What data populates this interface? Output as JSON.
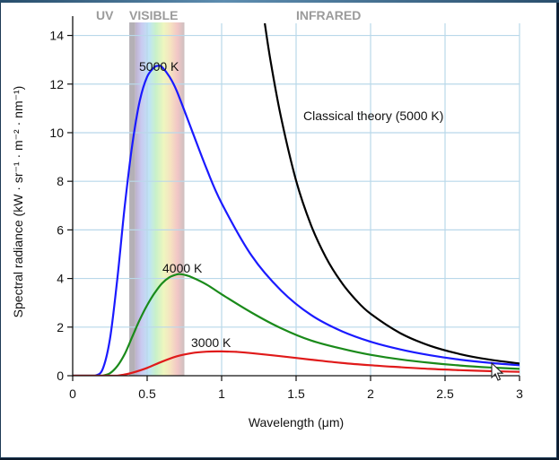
{
  "chart_data": {
    "type": "line",
    "title": "",
    "xlabel": "Wavelength (μm)",
    "ylabel": "Spectral radiance (kW · sr⁻¹ · m⁻² · nm⁻¹)",
    "xlim": [
      0,
      3
    ],
    "ylim": [
      0,
      14.5
    ],
    "xticks": [
      0,
      0.5,
      1,
      1.5,
      2,
      2.5,
      3
    ],
    "xtick_labels": [
      "0",
      "0.5",
      "1",
      "1.5",
      "2",
      "2.5",
      "3"
    ],
    "yticks": [
      0,
      2,
      4,
      6,
      8,
      10,
      12,
      14
    ],
    "ytick_labels": [
      "0",
      "2",
      "4",
      "6",
      "8",
      "10",
      "12",
      "14"
    ],
    "grid": true,
    "bands": [
      {
        "name": "UV",
        "from": 0.1,
        "to": 0.38
      },
      {
        "name": "VISIBLE",
        "from": 0.38,
        "to": 0.75
      },
      {
        "name": "INFRARED",
        "from": 0.75,
        "to": 3
      }
    ],
    "series": [
      {
        "name": "5000 K",
        "label": "5000 K",
        "color": "#1a1aff",
        "x": [
          0.15,
          0.2,
          0.25,
          0.3,
          0.35,
          0.4,
          0.45,
          0.5,
          0.55,
          0.58,
          0.6,
          0.65,
          0.7,
          0.8,
          0.9,
          1.0,
          1.2,
          1.4,
          1.6,
          1.8,
          2.0,
          2.2,
          2.4,
          2.6,
          2.8,
          3.0
        ],
        "y": [
          0.0,
          0.25,
          1.5,
          4.0,
          7.0,
          9.5,
          11.3,
          12.3,
          12.7,
          12.75,
          12.7,
          12.3,
          11.7,
          10.1,
          8.5,
          7.1,
          4.95,
          3.5,
          2.5,
          1.85,
          1.4,
          1.08,
          0.84,
          0.66,
          0.53,
          0.43
        ]
      },
      {
        "name": "4000 K",
        "label": "4000 K",
        "color": "#1a8a1a",
        "x": [
          0.2,
          0.25,
          0.3,
          0.35,
          0.4,
          0.45,
          0.5,
          0.55,
          0.6,
          0.65,
          0.7,
          0.72,
          0.75,
          0.8,
          0.9,
          1.0,
          1.2,
          1.4,
          1.6,
          1.8,
          2.0,
          2.2,
          2.4,
          2.6,
          2.8,
          3.0
        ],
        "y": [
          0.0,
          0.1,
          0.4,
          0.9,
          1.6,
          2.3,
          2.9,
          3.4,
          3.8,
          4.05,
          4.17,
          4.18,
          4.15,
          4.05,
          3.75,
          3.35,
          2.6,
          1.95,
          1.45,
          1.12,
          0.86,
          0.67,
          0.53,
          0.42,
          0.34,
          0.28
        ]
      },
      {
        "name": "3000 K",
        "label": "3000 K",
        "color": "#e01a1a",
        "x": [
          0.3,
          0.35,
          0.4,
          0.5,
          0.6,
          0.7,
          0.8,
          0.9,
          0.97,
          1.0,
          1.1,
          1.2,
          1.4,
          1.6,
          1.8,
          2.0,
          2.2,
          2.4,
          2.6,
          2.8,
          3.0
        ],
        "y": [
          0.0,
          0.05,
          0.12,
          0.32,
          0.58,
          0.8,
          0.93,
          0.99,
          1.0,
          1.0,
          0.98,
          0.93,
          0.8,
          0.66,
          0.53,
          0.43,
          0.35,
          0.28,
          0.23,
          0.19,
          0.16
        ]
      },
      {
        "name": "Classical theory (5000 K)",
        "label": "Classical theory (5000 K)",
        "color": "#000000",
        "x": [
          1.29,
          1.33,
          1.4,
          1.5,
          1.6,
          1.7,
          1.8,
          1.9,
          2.0,
          2.2,
          2.4,
          2.6,
          2.8,
          3.0
        ],
        "y": [
          14.5,
          12.9,
          10.6,
          8.03,
          6.2,
          4.87,
          3.88,
          3.13,
          2.55,
          1.75,
          1.23,
          0.89,
          0.66,
          0.5
        ]
      }
    ],
    "annotations": [
      "5000 K",
      "4000 K",
      "3000 K",
      "Classical theory (5000 K)"
    ]
  },
  "ui": {
    "cursor_icon": "mouse-pointer-icon"
  }
}
